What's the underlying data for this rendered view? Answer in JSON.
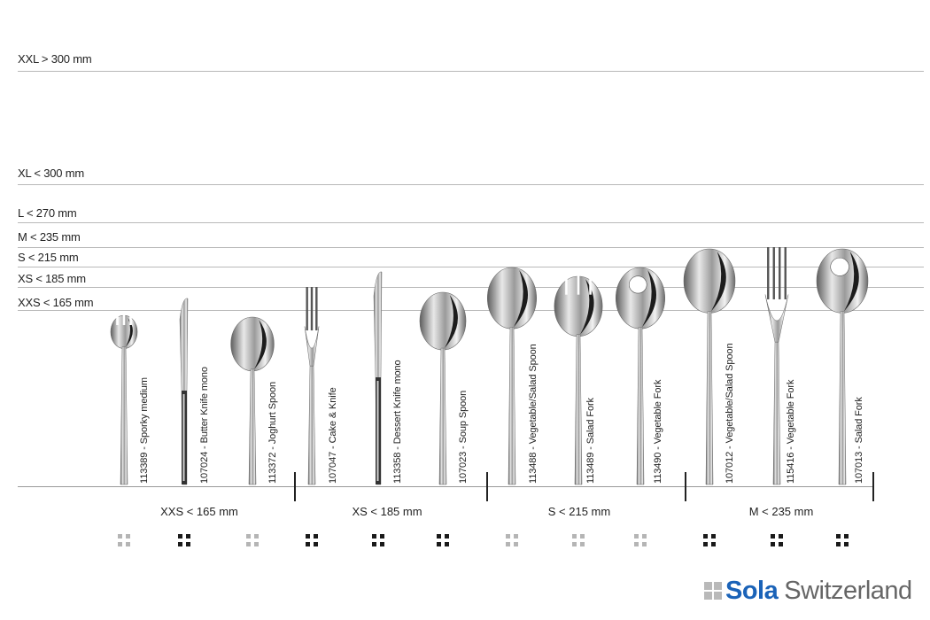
{
  "size_classes": [
    {
      "label": "XXL > 300 mm"
    },
    {
      "label": "XL < 300 mm"
    },
    {
      "label": "L < 270 mm"
    },
    {
      "label": "M < 235 mm"
    },
    {
      "label": "S < 215 mm"
    },
    {
      "label": "XS < 185 mm"
    },
    {
      "label": "XXS < 165 mm"
    }
  ],
  "groups": [
    {
      "label": "XXS < 165 mm"
    },
    {
      "label": "XS < 185 mm"
    },
    {
      "label": "S < 215 mm"
    },
    {
      "label": "M < 235 mm"
    }
  ],
  "items": [
    {
      "label": "113389 - Sporky medium",
      "kind": "spork",
      "dot_style": "light"
    },
    {
      "label": "107024 - Butter Knife mono",
      "kind": "knife",
      "dot_style": "dark"
    },
    {
      "label": "113372 - Joghurt Spoon",
      "kind": "spoon",
      "dot_style": "light"
    },
    {
      "label": "107047 - Cake & Knife",
      "kind": "fork3",
      "dot_style": "dark"
    },
    {
      "label": "113358 - Dessert Knife mono",
      "kind": "knife",
      "dot_style": "dark"
    },
    {
      "label": "107023 - Soup Spoon",
      "kind": "spoon",
      "dot_style": "dark"
    },
    {
      "label": "113488 - Vegetable/Salad Spoon",
      "kind": "spoon",
      "dot_style": "light"
    },
    {
      "label": "113489 - Salad Fork",
      "kind": "saladfork",
      "dot_style": "light"
    },
    {
      "label": "113490 - Vegetable Fork",
      "kind": "holespoon",
      "dot_style": "light"
    },
    {
      "label": "107012 - Vegetable/Salad Spoon",
      "kind": "spoon",
      "dot_style": "dark"
    },
    {
      "label": "115416 - Vegetable Fork",
      "kind": "fork4",
      "dot_style": "dark"
    },
    {
      "label": "107013 - Salad Fork",
      "kind": "holespoon",
      "dot_style": "dark"
    }
  ],
  "colors": {
    "dot_dark": "#1a1a1a",
    "dot_light": "#b5b5b5",
    "logo_blue": "#1b63b8"
  },
  "logo": {
    "brand": "Sola",
    "region": "Switzerland"
  }
}
